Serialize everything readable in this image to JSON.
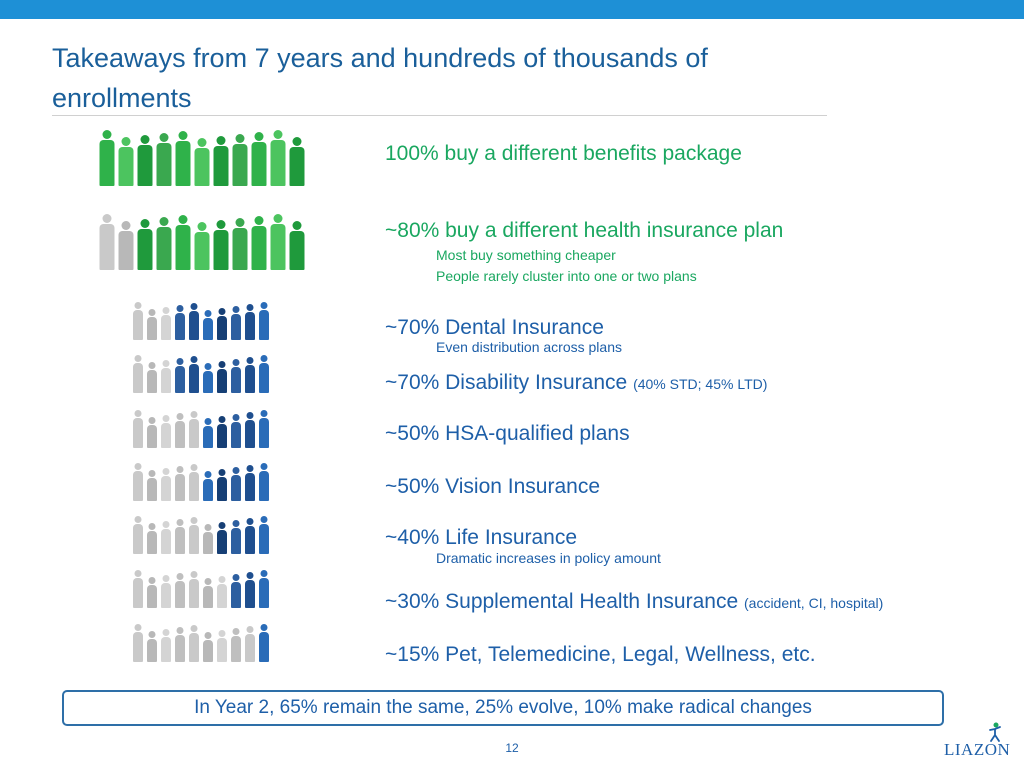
{
  "title": "Takeaways from 7 years and hundreds of thousands of enrollments",
  "colors": {
    "accent_bar": "#1e90d6",
    "title": "#1a5f9a",
    "green": "#1aa760",
    "blue": "#1e5fa8",
    "gray": "#c4c4c4"
  },
  "stats": [
    {
      "text": "100% buy a different benefits package",
      "paren": "",
      "subs": []
    },
    {
      "text": "~80% buy a different health insurance plan",
      "paren": "",
      "subs": [
        "Most buy something cheaper",
        "People rarely cluster into one or two plans"
      ]
    },
    {
      "text": "~70% Dental Insurance",
      "paren": "",
      "subs": [
        "Even distribution across plans"
      ]
    },
    {
      "text": "~70% Disability Insurance",
      "paren": "(40% STD; 45% LTD)",
      "subs": []
    },
    {
      "text": "~50% HSA-qualified plans",
      "paren": "",
      "subs": []
    },
    {
      "text": "~50% Vision Insurance",
      "paren": "",
      "subs": []
    },
    {
      "text": "~40% Life Insurance",
      "paren": "",
      "subs": [
        "Dramatic increases in policy amount"
      ]
    },
    {
      "text": "~30% Supplemental Health Insurance",
      "paren": "(accident, CI, hospital)",
      "subs": []
    },
    {
      "text": "~15% Pet, Telemedicine, Legal, Wellness, etc.",
      "paren": "",
      "subs": []
    }
  ],
  "callout": "In Year 2, 65% remain the same, 25% evolve, 10% make radical changes",
  "page_number": "12",
  "logo": "LIAZON"
}
